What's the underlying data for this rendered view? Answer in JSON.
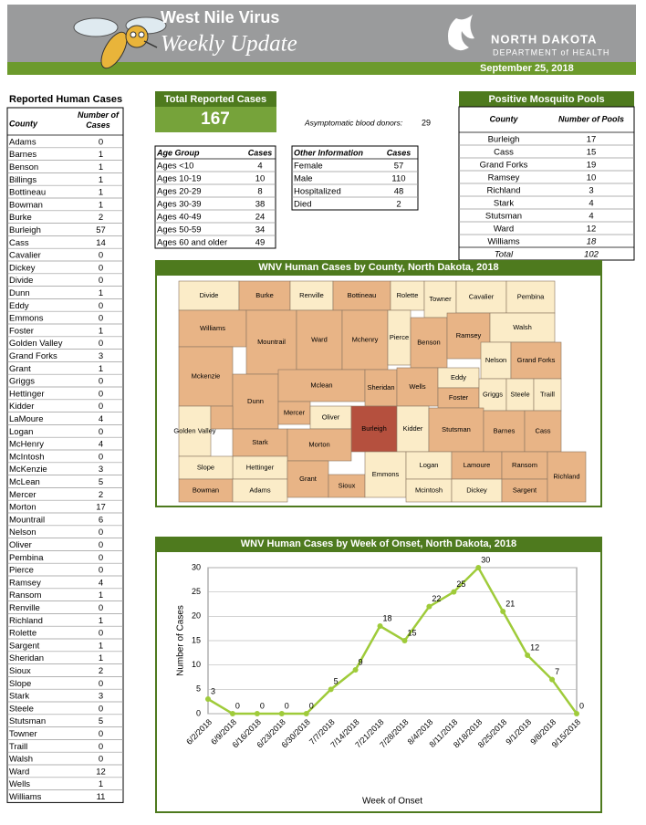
{
  "header": {
    "title": "West Nile Virus",
    "subtitle": "Weekly Update",
    "org_line1": "NORTH DAKOTA",
    "org_line2": "DEPARTMENT of HEALTH",
    "date": "September 25, 2018"
  },
  "county_table": {
    "title": "Reported Human Cases",
    "columns": [
      "County",
      "Number of Cases"
    ],
    "rows": [
      [
        "Adams",
        0
      ],
      [
        "Barnes",
        1
      ],
      [
        "Benson",
        1
      ],
      [
        "Billings",
        1
      ],
      [
        "Bottineau",
        1
      ],
      [
        "Bowman",
        1
      ],
      [
        "Burke",
        2
      ],
      [
        "Burleigh",
        57
      ],
      [
        "Cass",
        14
      ],
      [
        "Cavalier",
        0
      ],
      [
        "Dickey",
        0
      ],
      [
        "Divide",
        0
      ],
      [
        "Dunn",
        1
      ],
      [
        "Eddy",
        0
      ],
      [
        "Emmons",
        0
      ],
      [
        "Foster",
        1
      ],
      [
        "Golden Valley",
        0
      ],
      [
        "Grand Forks",
        3
      ],
      [
        "Grant",
        1
      ],
      [
        "Griggs",
        0
      ],
      [
        "Hettinger",
        0
      ],
      [
        "Kidder",
        0
      ],
      [
        "LaMoure",
        4
      ],
      [
        "Logan",
        0
      ],
      [
        "McHenry",
        4
      ],
      [
        "McIntosh",
        0
      ],
      [
        "McKenzie",
        3
      ],
      [
        "McLean",
        5
      ],
      [
        "Mercer",
        2
      ],
      [
        "Morton",
        17
      ],
      [
        "Mountrail",
        6
      ],
      [
        "Nelson",
        0
      ],
      [
        "Oliver",
        0
      ],
      [
        "Pembina",
        0
      ],
      [
        "Pierce",
        0
      ],
      [
        "Ramsey",
        4
      ],
      [
        "Ransom",
        1
      ],
      [
        "Renville",
        0
      ],
      [
        "Richland",
        1
      ],
      [
        "Rolette",
        0
      ],
      [
        "Sargent",
        1
      ],
      [
        "Sheridan",
        1
      ],
      [
        "Sioux",
        2
      ],
      [
        "Slope",
        0
      ],
      [
        "Stark",
        3
      ],
      [
        "Steele",
        0
      ],
      [
        "Stutsman",
        5
      ],
      [
        "Towner",
        0
      ],
      [
        "Traill",
        0
      ],
      [
        "Walsh",
        0
      ],
      [
        "Ward",
        12
      ],
      [
        "Wells",
        1
      ],
      [
        "Williams",
        11
      ]
    ]
  },
  "total_cases": {
    "label": "Total Reported Cases",
    "value": 167
  },
  "asymptomatic": {
    "label": "Asymptomatic blood donors:",
    "value": 29
  },
  "age_table": {
    "columns": [
      "Age Group",
      "Cases"
    ],
    "rows": [
      [
        "Ages <10",
        4
      ],
      [
        "Ages 10-19",
        10
      ],
      [
        "Ages 20-29",
        8
      ],
      [
        "Ages 30-39",
        38
      ],
      [
        "Ages 40-49",
        24
      ],
      [
        "Ages 50-59",
        34
      ],
      [
        "Ages 60 and older",
        49
      ]
    ]
  },
  "other_table": {
    "columns": [
      "Other Information",
      "Cases"
    ],
    "rows": [
      [
        "Female",
        57
      ],
      [
        "Male",
        110
      ],
      [
        "Hospitalized",
        48
      ],
      [
        "Died",
        2
      ]
    ]
  },
  "mosquito_table": {
    "title": "Positive Mosquito Pools",
    "columns": [
      "County",
      "Number of Pools"
    ],
    "rows": [
      [
        "Burleigh",
        17
      ],
      [
        "Cass",
        15
      ],
      [
        "Grand Forks",
        19
      ],
      [
        "Ramsey",
        10
      ],
      [
        "Richland",
        3
      ],
      [
        "Stark",
        4
      ],
      [
        "Stutsman",
        4
      ],
      [
        "Ward",
        12
      ],
      [
        "Williams",
        18
      ]
    ],
    "total": [
      "Total",
      102
    ]
  },
  "map": {
    "title": "WNV Human Cases by County, North Dakota, 2018",
    "regions": [
      {
        "label": "Divide",
        "color": "#fbecc8"
      },
      {
        "label": "Burke",
        "color": "#e8b486"
      },
      {
        "label": "Renville",
        "color": "#fbecc8"
      },
      {
        "label": "Bottineau",
        "color": "#e8b486"
      },
      {
        "label": "Rolette",
        "color": "#fbecc8"
      },
      {
        "label": "Towner",
        "color": "#fbecc8"
      },
      {
        "label": "Cavalier",
        "color": "#fbecc8"
      },
      {
        "label": "Pembina",
        "color": "#fbecc8"
      },
      {
        "label": "Williams",
        "color": "#e8b486"
      },
      {
        "label": "Mountrail",
        "color": "#e8b486"
      },
      {
        "label": "Ward",
        "color": "#e8b486"
      },
      {
        "label": "Mchenry",
        "color": "#e8b486"
      },
      {
        "label": "Pierce",
        "color": "#fbecc8"
      },
      {
        "label": "Benson",
        "color": "#e8b486"
      },
      {
        "label": "Ramsey",
        "color": "#e8b486"
      },
      {
        "label": "Walsh",
        "color": "#fbecc8"
      },
      {
        "label": "Nelson",
        "color": "#fbecc8"
      },
      {
        "label": "Grand Forks",
        "color": "#e8b486"
      },
      {
        "label": "Mckenzie",
        "color": "#e8b486"
      },
      {
        "label": "Dunn",
        "color": "#e8b486"
      },
      {
        "label": "Mclean",
        "color": "#e8b486"
      },
      {
        "label": "Sheridan",
        "color": "#e8b486"
      },
      {
        "label": "Wells",
        "color": "#e8b486"
      },
      {
        "label": "Eddy",
        "color": "#fbecc8"
      },
      {
        "label": "Foster",
        "color": "#e8b486"
      },
      {
        "label": "Griggs",
        "color": "#fbecc8"
      },
      {
        "label": "Steele",
        "color": "#fbecc8"
      },
      {
        "label": "Traill",
        "color": "#fbecc8"
      },
      {
        "label": "Mercer",
        "color": "#e8b486"
      },
      {
        "label": "Oliver",
        "color": "#fbecc8"
      },
      {
        "label": "Burleigh",
        "color": "#b5503e"
      },
      {
        "label": "Kidder",
        "color": "#fbecc8"
      },
      {
        "label": "Stutsman",
        "color": "#e8b486"
      },
      {
        "label": "Barnes",
        "color": "#e8b486"
      },
      {
        "label": "Cass",
        "color": "#e8b486"
      },
      {
        "label": "Golden Valley",
        "color": "#fbecc8"
      },
      {
        "label": "Stark",
        "color": "#e8b486"
      },
      {
        "label": "Morton",
        "color": "#e8b486"
      },
      {
        "label": "Hettinger",
        "color": "#fbecc8"
      },
      {
        "label": "Slope",
        "color": "#fbecc8"
      },
      {
        "label": "Bowman",
        "color": "#e8b486"
      },
      {
        "label": "Adams",
        "color": "#fbecc8"
      },
      {
        "label": "Grant",
        "color": "#e8b486"
      },
      {
        "label": "Sioux",
        "color": "#e8b486"
      },
      {
        "label": "Emmons",
        "color": "#fbecc8"
      },
      {
        "label": "Logan",
        "color": "#fbecc8"
      },
      {
        "label": "Mcintosh",
        "color": "#fbecc8"
      },
      {
        "label": "Lamoure",
        "color": "#e8b486"
      },
      {
        "label": "Dickey",
        "color": "#fbecc8"
      },
      {
        "label": "Ransom",
        "color": "#e8b486"
      },
      {
        "label": "Sargent",
        "color": "#e8b486"
      },
      {
        "label": "Richland",
        "color": "#e8b486"
      }
    ]
  },
  "chart_data": {
    "type": "line",
    "title": "WNV Human Cases by Week of Onset, North Dakota, 2018",
    "x_label": "Week of Onset",
    "y_label": "Number of Cases",
    "categories": [
      "6/2/2018",
      "6/9/2018",
      "6/16/2018",
      "6/23/2018",
      "6/30/2018",
      "7/7/2018",
      "7/14/2018",
      "7/21/2018",
      "7/28/2018",
      "8/4/2018",
      "8/11/2018",
      "8/18/2018",
      "8/25/2018",
      "9/1/2018",
      "9/8/2018",
      "9/15/2018"
    ],
    "values": [
      3,
      0,
      0,
      0,
      0,
      5,
      9,
      18,
      15,
      22,
      25,
      30,
      21,
      12,
      7,
      0
    ],
    "color": "#9fcb3a",
    "ylim": [
      0,
      30
    ],
    "yticks": [
      0,
      5,
      10,
      15,
      20,
      25,
      30
    ],
    "grid": true
  }
}
